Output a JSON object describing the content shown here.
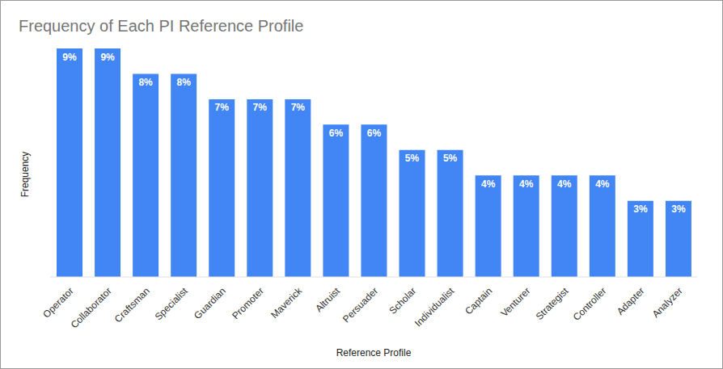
{
  "chart_data": {
    "type": "bar",
    "title": "Frequency of Each PI Reference Profile",
    "x_label": "Reference Profile",
    "y_label": "Frequency",
    "categories": [
      "Operator",
      "Collaborator",
      "Craftsman",
      "Specialist",
      "Guardian",
      "Promoter",
      "Maverick",
      "Altruist",
      "Persuader",
      "Scholar",
      "Individualist",
      "Captain",
      "Venturer",
      "Strategist",
      "Controller",
      "Adapter",
      "Analyzer"
    ],
    "values": [
      9,
      9,
      8,
      8,
      7,
      7,
      7,
      6,
      6,
      5,
      5,
      4,
      4,
      4,
      4,
      3,
      3
    ],
    "value_labels": [
      "9%",
      "9%",
      "8%",
      "8%",
      "7%",
      "7%",
      "7%",
      "6%",
      "6%",
      "5%",
      "5%",
      "4%",
      "4%",
      "4%",
      "4%",
      "3%",
      "3%"
    ],
    "color": "#4285f4",
    "ylim": [
      0,
      9
    ],
    "grid": false,
    "data_labels": true,
    "tick_labels": "x"
  }
}
